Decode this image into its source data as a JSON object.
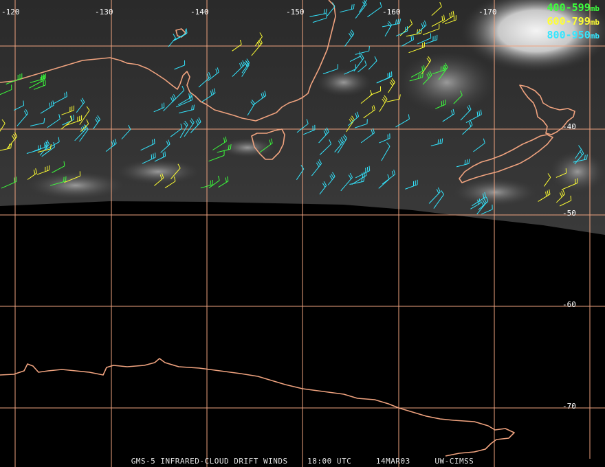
{
  "colors": {
    "grid": "#f0a37f",
    "coast": "#f0a37f",
    "layer_400_599": "#3cff3c",
    "layer_600_799": "#ffff33",
    "layer_800_950": "#33e6ff"
  },
  "lon_labels": [
    "-120",
    "-130",
    "-140",
    "-150",
    "-160",
    "-170"
  ],
  "lat_labels": [
    "-40",
    "-50",
    "-60",
    "-70"
  ],
  "legend": [
    {
      "range": "400-599",
      "unit": "mb",
      "color_key": "layer_400_599"
    },
    {
      "range": "600-799",
      "unit": "mb",
      "color_key": "layer_600_799"
    },
    {
      "range": "800-950",
      "unit": "mb",
      "color_key": "layer_800_950"
    }
  ],
  "footer": {
    "product": "GMS-5 INFRARED-CLOUD DRIFT WINDS",
    "time": "18:00 UTC",
    "date": "14MAR03",
    "source": "UW-CIMSS"
  },
  "map_features": {
    "coastlines": [
      "australia-south-coast",
      "tasmania",
      "new-zealand",
      "antarctica-coast"
    ],
    "imagery": "infrared-cloud"
  }
}
